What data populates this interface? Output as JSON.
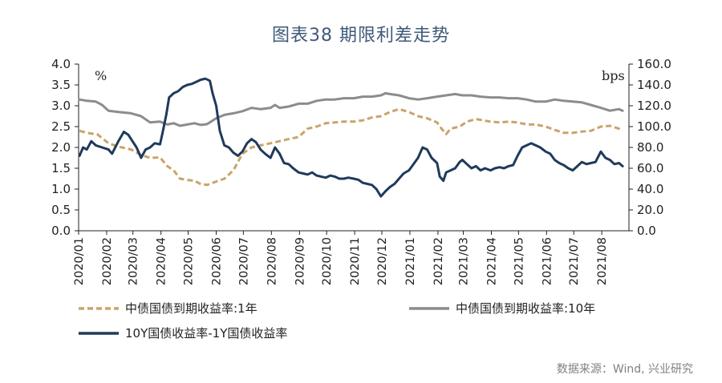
{
  "title": "图表38 期限利差走势",
  "source": "数据来源：Wind, 兴业研究",
  "chart_data": {
    "type": "line",
    "left_axis": {
      "unit": "%",
      "min": 0,
      "max": 4,
      "ticks": [
        "0.0",
        "0.5",
        "1.0",
        "1.5",
        "2.0",
        "2.5",
        "3.0",
        "3.5",
        "4.0"
      ]
    },
    "right_axis": {
      "unit": "bps",
      "min": 0,
      "max": 160,
      "ticks": [
        "0.0",
        "20.0",
        "40.0",
        "60.0",
        "80.0",
        "100.0",
        "120.0",
        "140.0",
        "160.0"
      ]
    },
    "x_range": [
      "2020/01/01",
      "2021/08/31"
    ],
    "x_ticks": [
      "2020/01",
      "2020/02",
      "2020/03",
      "2020/04",
      "2020/05",
      "2020/06",
      "2020/07",
      "2020/08",
      "2020/09",
      "2020/10",
      "2020/11",
      "2020/12",
      "2021/01",
      "2021/02",
      "2021/03",
      "2021/04",
      "2021/05",
      "2021/06",
      "2021/07",
      "2021/08"
    ],
    "series": [
      {
        "name": "中债国债到期收益率:1年",
        "axis": "left",
        "color": "#c9a46a",
        "style": "dashed",
        "points": [
          [
            "2020/01/02",
            2.4
          ],
          [
            "2020/01/10",
            2.35
          ],
          [
            "2020/01/22",
            2.31
          ],
          [
            "2020/02/03",
            2.1
          ],
          [
            "2020/02/14",
            2.02
          ],
          [
            "2020/02/28",
            1.95
          ],
          [
            "2020/03/10",
            1.82
          ],
          [
            "2020/03/20",
            1.75
          ],
          [
            "2020/03/31",
            1.76
          ],
          [
            "2020/04/08",
            1.55
          ],
          [
            "2020/04/15",
            1.45
          ],
          [
            "2020/04/22",
            1.25
          ],
          [
            "2020/04/30",
            1.22
          ],
          [
            "2020/05/08",
            1.2
          ],
          [
            "2020/05/15",
            1.12
          ],
          [
            "2020/05/22",
            1.1
          ],
          [
            "2020/06/01",
            1.18
          ],
          [
            "2020/06/10",
            1.25
          ],
          [
            "2020/06/20",
            1.45
          ],
          [
            "2020/06/30",
            1.85
          ],
          [
            "2020/07/10",
            2.0
          ],
          [
            "2020/07/20",
            2.05
          ],
          [
            "2020/07/31",
            2.1
          ],
          [
            "2020/08/10",
            2.15
          ],
          [
            "2020/08/20",
            2.2
          ],
          [
            "2020/08/31",
            2.25
          ],
          [
            "2020/09/10",
            2.45
          ],
          [
            "2020/09/20",
            2.5
          ],
          [
            "2020/09/30",
            2.58
          ],
          [
            "2020/10/10",
            2.6
          ],
          [
            "2020/10/20",
            2.62
          ],
          [
            "2020/10/31",
            2.62
          ],
          [
            "2020/11/10",
            2.65
          ],
          [
            "2020/11/20",
            2.72
          ],
          [
            "2020/11/30",
            2.75
          ],
          [
            "2020/12/10",
            2.85
          ],
          [
            "2020/12/20",
            2.92
          ],
          [
            "2020/12/31",
            2.85
          ],
          [
            "2021/01/10",
            2.75
          ],
          [
            "2021/01/20",
            2.7
          ],
          [
            "2021/01/31",
            2.6
          ],
          [
            "2021/02/05",
            2.45
          ],
          [
            "2021/02/10",
            2.32
          ],
          [
            "2021/02/15",
            2.45
          ],
          [
            "2021/02/25",
            2.5
          ],
          [
            "2021/03/05",
            2.62
          ],
          [
            "2021/03/15",
            2.68
          ],
          [
            "2021/03/31",
            2.62
          ],
          [
            "2021/04/10",
            2.6
          ],
          [
            "2021/04/20",
            2.62
          ],
          [
            "2021/04/30",
            2.6
          ],
          [
            "2021/05/10",
            2.55
          ],
          [
            "2021/05/20",
            2.55
          ],
          [
            "2021/05/31",
            2.5
          ],
          [
            "2021/06/10",
            2.42
          ],
          [
            "2021/06/20",
            2.35
          ],
          [
            "2021/06/30",
            2.35
          ],
          [
            "2021/07/10",
            2.38
          ],
          [
            "2021/07/20",
            2.4
          ],
          [
            "2021/07/31",
            2.5
          ],
          [
            "2021/08/10",
            2.52
          ],
          [
            "2021/08/20",
            2.45
          ],
          [
            "2021/08/24",
            2.4
          ]
        ]
      },
      {
        "name": "中债国债到期收益率:10年",
        "axis": "left",
        "color": "#8c8c8c",
        "style": "solid",
        "points": [
          [
            "2020/01/02",
            3.15
          ],
          [
            "2020/01/10",
            3.12
          ],
          [
            "2020/01/20",
            3.1
          ],
          [
            "2020/01/27",
            3.02
          ],
          [
            "2020/02/03",
            2.88
          ],
          [
            "2020/02/14",
            2.85
          ],
          [
            "2020/02/28",
            2.82
          ],
          [
            "2020/03/10",
            2.75
          ],
          [
            "2020/03/20",
            2.6
          ],
          [
            "2020/03/31",
            2.62
          ],
          [
            "2020/04/08",
            2.55
          ],
          [
            "2020/04/15",
            2.58
          ],
          [
            "2020/04/22",
            2.52
          ],
          [
            "2020/04/30",
            2.55
          ],
          [
            "2020/05/08",
            2.58
          ],
          [
            "2020/05/15",
            2.54
          ],
          [
            "2020/05/22",
            2.56
          ],
          [
            "2020/06/01",
            2.7
          ],
          [
            "2020/06/10",
            2.78
          ],
          [
            "2020/06/20",
            2.82
          ],
          [
            "2020/06/30",
            2.87
          ],
          [
            "2020/07/10",
            2.95
          ],
          [
            "2020/07/20",
            2.92
          ],
          [
            "2020/07/31",
            2.95
          ],
          [
            "2020/08/05",
            3.02
          ],
          [
            "2020/08/10",
            2.95
          ],
          [
            "2020/08/20",
            2.98
          ],
          [
            "2020/08/31",
            3.05
          ],
          [
            "2020/09/10",
            3.05
          ],
          [
            "2020/09/20",
            3.12
          ],
          [
            "2020/09/30",
            3.15
          ],
          [
            "2020/10/10",
            3.15
          ],
          [
            "2020/10/20",
            3.18
          ],
          [
            "2020/10/31",
            3.18
          ],
          [
            "2020/11/10",
            3.22
          ],
          [
            "2020/11/20",
            3.22
          ],
          [
            "2020/11/30",
            3.25
          ],
          [
            "2020/12/05",
            3.3
          ],
          [
            "2020/12/10",
            3.28
          ],
          [
            "2020/12/20",
            3.25
          ],
          [
            "2020/12/31",
            3.18
          ],
          [
            "2021/01/10",
            3.15
          ],
          [
            "2021/01/20",
            3.18
          ],
          [
            "2021/01/31",
            3.22
          ],
          [
            "2021/02/10",
            3.25
          ],
          [
            "2021/02/20",
            3.28
          ],
          [
            "2021/02/28",
            3.25
          ],
          [
            "2021/03/10",
            3.25
          ],
          [
            "2021/03/20",
            3.22
          ],
          [
            "2021/03/31",
            3.2
          ],
          [
            "2021/04/10",
            3.2
          ],
          [
            "2021/04/20",
            3.18
          ],
          [
            "2021/04/30",
            3.18
          ],
          [
            "2021/05/10",
            3.15
          ],
          [
            "2021/05/20",
            3.1
          ],
          [
            "2021/05/31",
            3.1
          ],
          [
            "2021/06/10",
            3.15
          ],
          [
            "2021/06/20",
            3.12
          ],
          [
            "2021/06/30",
            3.1
          ],
          [
            "2021/07/10",
            3.08
          ],
          [
            "2021/07/20",
            3.02
          ],
          [
            "2021/07/31",
            2.95
          ],
          [
            "2021/08/10",
            2.88
          ],
          [
            "2021/08/20",
            2.92
          ],
          [
            "2021/08/24",
            2.88
          ]
        ]
      },
      {
        "name": "10Y国债收益率-1Y国债收益率",
        "axis": "right",
        "color": "#1f3a5c",
        "style": "solid",
        "points": [
          [
            "2020/01/02",
            72
          ],
          [
            "2020/01/06",
            80
          ],
          [
            "2020/01/10",
            78
          ],
          [
            "2020/01/15",
            86
          ],
          [
            "2020/01/20",
            82
          ],
          [
            "2020/01/27",
            80
          ],
          [
            "2020/02/03",
            78
          ],
          [
            "2020/02/07",
            74
          ],
          [
            "2020/02/14",
            86
          ],
          [
            "2020/02/20",
            95
          ],
          [
            "2020/02/25",
            92
          ],
          [
            "2020/02/28",
            88
          ],
          [
            "2020/03/05",
            80
          ],
          [
            "2020/03/10",
            70
          ],
          [
            "2020/03/15",
            78
          ],
          [
            "2020/03/20",
            80
          ],
          [
            "2020/03/25",
            84
          ],
          [
            "2020/03/31",
            83
          ],
          [
            "2020/04/03",
            95
          ],
          [
            "2020/04/07",
            112
          ],
          [
            "2020/04/10",
            128
          ],
          [
            "2020/04/15",
            132
          ],
          [
            "2020/04/20",
            134
          ],
          [
            "2020/04/25",
            138
          ],
          [
            "2020/04/30",
            140
          ],
          [
            "2020/05/05",
            141
          ],
          [
            "2020/05/10",
            143
          ],
          [
            "2020/05/15",
            145
          ],
          [
            "2020/05/20",
            146
          ],
          [
            "2020/05/25",
            144
          ],
          [
            "2020/05/28",
            132
          ],
          [
            "2020/06/01",
            120
          ],
          [
            "2020/06/05",
            96
          ],
          [
            "2020/06/10",
            82
          ],
          [
            "2020/06/15",
            80
          ],
          [
            "2020/06/20",
            75
          ],
          [
            "2020/06/25",
            72
          ],
          [
            "2020/06/30",
            76
          ],
          [
            "2020/07/05",
            84
          ],
          [
            "2020/07/10",
            88
          ],
          [
            "2020/07/15",
            85
          ],
          [
            "2020/07/20",
            78
          ],
          [
            "2020/07/25",
            74
          ],
          [
            "2020/07/31",
            70
          ],
          [
            "2020/08/05",
            80
          ],
          [
            "2020/08/10",
            74
          ],
          [
            "2020/08/15",
            65
          ],
          [
            "2020/08/20",
            64
          ],
          [
            "2020/08/25",
            60
          ],
          [
            "2020/08/31",
            56
          ],
          [
            "2020/09/05",
            55
          ],
          [
            "2020/09/10",
            54
          ],
          [
            "2020/09/15",
            56
          ],
          [
            "2020/09/20",
            53
          ],
          [
            "2020/09/25",
            52
          ],
          [
            "2020/09/30",
            51
          ],
          [
            "2020/10/05",
            53
          ],
          [
            "2020/10/10",
            52
          ],
          [
            "2020/10/15",
            50
          ],
          [
            "2020/10/20",
            50
          ],
          [
            "2020/10/25",
            51
          ],
          [
            "2020/10/31",
            50
          ],
          [
            "2020/11/05",
            49
          ],
          [
            "2020/11/10",
            46
          ],
          [
            "2020/11/15",
            45
          ],
          [
            "2020/11/20",
            44
          ],
          [
            "2020/11/25",
            40
          ],
          [
            "2020/11/30",
            33
          ],
          [
            "2020/12/05",
            38
          ],
          [
            "2020/12/10",
            42
          ],
          [
            "2020/12/15",
            45
          ],
          [
            "2020/12/20",
            50
          ],
          [
            "2020/12/25",
            55
          ],
          [
            "2020/12/31",
            58
          ],
          [
            "2021/01/05",
            64
          ],
          [
            "2021/01/10",
            70
          ],
          [
            "2021/01/15",
            80
          ],
          [
            "2021/01/20",
            78
          ],
          [
            "2021/01/25",
            70
          ],
          [
            "2021/01/31",
            65
          ],
          [
            "2021/02/03",
            52
          ],
          [
            "2021/02/07",
            48
          ],
          [
            "2021/02/10",
            56
          ],
          [
            "2021/02/15",
            58
          ],
          [
            "2021/02/20",
            60
          ],
          [
            "2021/02/25",
            66
          ],
          [
            "2021/02/28",
            68
          ],
          [
            "2021/03/05",
            64
          ],
          [
            "2021/03/10",
            60
          ],
          [
            "2021/03/15",
            62
          ],
          [
            "2021/03/20",
            58
          ],
          [
            "2021/03/25",
            60
          ],
          [
            "2021/03/31",
            58
          ],
          [
            "2021/04/05",
            60
          ],
          [
            "2021/04/10",
            61
          ],
          [
            "2021/04/15",
            60
          ],
          [
            "2021/04/20",
            62
          ],
          [
            "2021/04/25",
            63
          ],
          [
            "2021/04/30",
            72
          ],
          [
            "2021/05/05",
            80
          ],
          [
            "2021/05/10",
            82
          ],
          [
            "2021/05/15",
            84
          ],
          [
            "2021/05/20",
            82
          ],
          [
            "2021/05/25",
            80
          ],
          [
            "2021/05/31",
            76
          ],
          [
            "2021/06/05",
            74
          ],
          [
            "2021/06/10",
            68
          ],
          [
            "2021/06/15",
            65
          ],
          [
            "2021/06/20",
            63
          ],
          [
            "2021/06/25",
            60
          ],
          [
            "2021/06/30",
            58
          ],
          [
            "2021/07/05",
            62
          ],
          [
            "2021/07/10",
            66
          ],
          [
            "2021/07/15",
            64
          ],
          [
            "2021/07/20",
            65
          ],
          [
            "2021/07/25",
            66
          ],
          [
            "2021/07/31",
            76
          ],
          [
            "2021/08/05",
            70
          ],
          [
            "2021/08/10",
            68
          ],
          [
            "2021/08/15",
            64
          ],
          [
            "2021/08/20",
            65
          ],
          [
            "2021/08/24",
            62
          ]
        ]
      }
    ]
  }
}
